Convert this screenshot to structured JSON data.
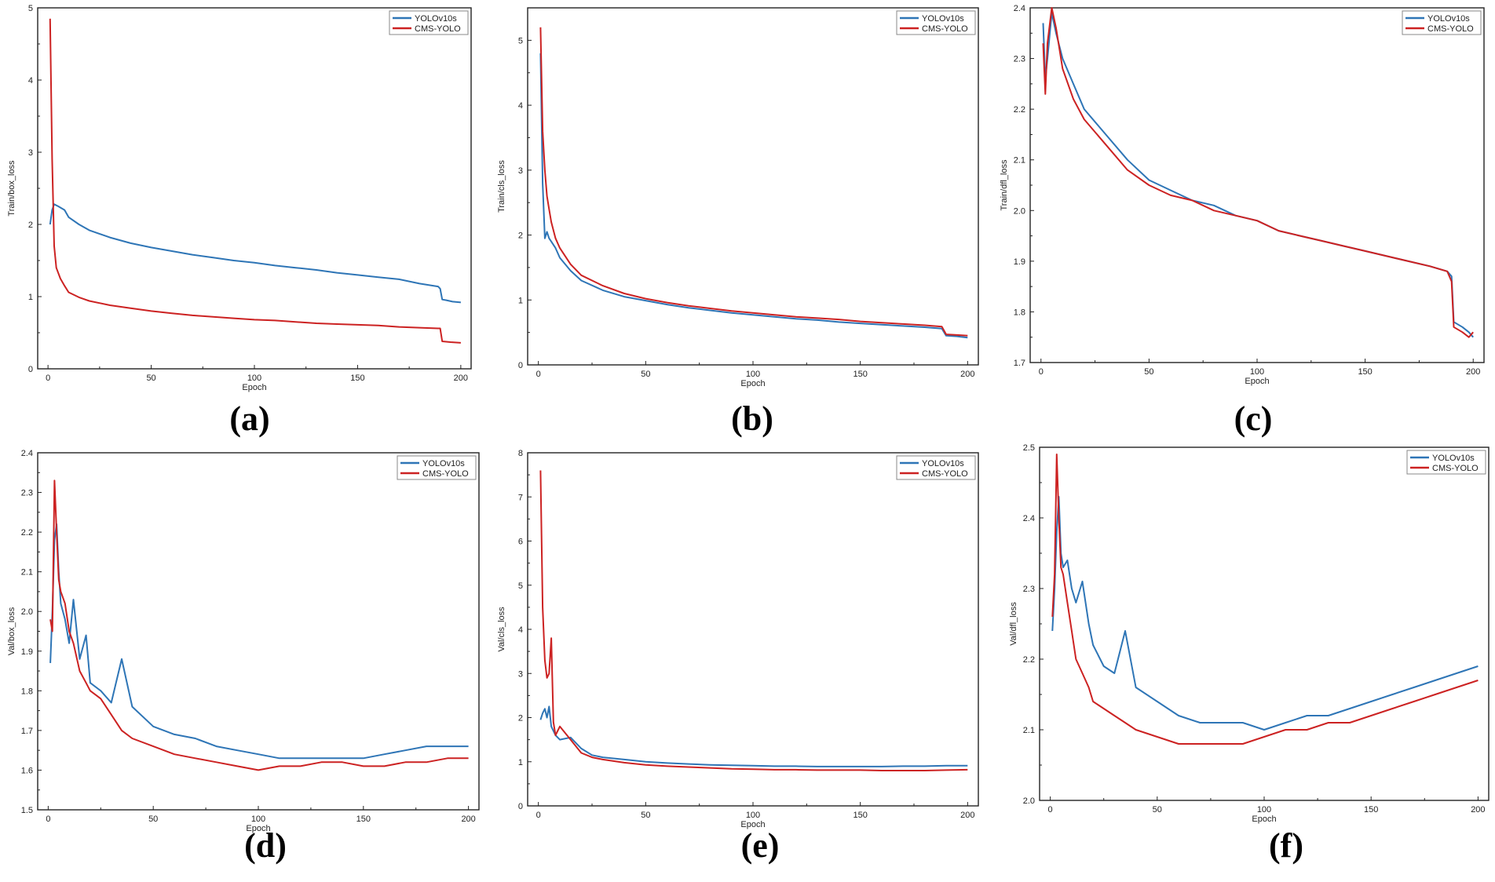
{
  "colors": {
    "yolov10s": "#2e75b6",
    "cms_yolo": "#cc2222",
    "axis": "#222222"
  },
  "captions": [
    "(a)",
    "(b)",
    "(c)",
    "(d)",
    "(e)",
    "(f)"
  ],
  "chart_data": [
    {
      "type": "line",
      "title": "",
      "xlabel": "Epoch",
      "ylabel": "Train/box_loss",
      "xlim": [
        -5,
        205
      ],
      "ylim": [
        0,
        5
      ],
      "xticks": [
        0,
        50,
        100,
        150,
        200
      ],
      "yticks": [
        0,
        1,
        2,
        3,
        4,
        5
      ],
      "legend": "top-right",
      "series": [
        {
          "name": "YOLOv10s",
          "color": "#2e75b6",
          "x": [
            1,
            2,
            3,
            5,
            8,
            10,
            15,
            20,
            30,
            40,
            50,
            60,
            70,
            80,
            90,
            100,
            110,
            120,
            130,
            140,
            150,
            160,
            170,
            180,
            189,
            190,
            191,
            193,
            196,
            200
          ],
          "y": [
            2.0,
            2.2,
            2.28,
            2.25,
            2.2,
            2.1,
            2.0,
            1.92,
            1.82,
            1.74,
            1.68,
            1.63,
            1.58,
            1.54,
            1.5,
            1.47,
            1.43,
            1.4,
            1.37,
            1.33,
            1.3,
            1.27,
            1.24,
            1.18,
            1.14,
            1.11,
            0.96,
            0.95,
            0.93,
            0.92
          ]
        },
        {
          "name": "CMS-YOLO",
          "color": "#cc2222",
          "x": [
            1,
            2,
            3,
            4,
            6,
            8,
            10,
            15,
            20,
            30,
            40,
            50,
            60,
            70,
            80,
            90,
            100,
            110,
            120,
            130,
            140,
            150,
            160,
            170,
            180,
            189,
            190,
            191,
            195,
            200
          ],
          "y": [
            4.85,
            2.9,
            1.7,
            1.4,
            1.25,
            1.15,
            1.06,
            0.99,
            0.94,
            0.88,
            0.84,
            0.8,
            0.77,
            0.74,
            0.72,
            0.7,
            0.68,
            0.67,
            0.65,
            0.63,
            0.62,
            0.61,
            0.6,
            0.58,
            0.57,
            0.56,
            0.56,
            0.38,
            0.37,
            0.36
          ]
        }
      ]
    },
    {
      "type": "line",
      "title": "",
      "xlabel": "Epoch",
      "ylabel": "Train/cls_loss",
      "xlim": [
        -5,
        205
      ],
      "ylim": [
        0,
        5.5
      ],
      "xticks": [
        0,
        50,
        100,
        150,
        200
      ],
      "yticks": [
        0,
        1,
        2,
        3,
        4,
        5
      ],
      "legend": "top-right",
      "series": [
        {
          "name": "YOLOv10s",
          "color": "#2e75b6",
          "x": [
            1,
            2,
            3,
            4,
            5,
            6,
            8,
            10,
            15,
            20,
            30,
            40,
            50,
            60,
            70,
            80,
            90,
            100,
            110,
            120,
            130,
            140,
            150,
            160,
            170,
            180,
            188,
            190,
            195,
            200
          ],
          "y": [
            4.8,
            2.8,
            1.95,
            2.05,
            1.95,
            1.9,
            1.8,
            1.65,
            1.45,
            1.3,
            1.15,
            1.05,
            0.99,
            0.93,
            0.88,
            0.84,
            0.8,
            0.77,
            0.74,
            0.71,
            0.69,
            0.66,
            0.64,
            0.62,
            0.6,
            0.58,
            0.56,
            0.45,
            0.44,
            0.42
          ]
        },
        {
          "name": "CMS-YOLO",
          "color": "#cc2222",
          "x": [
            1,
            2,
            3,
            4,
            5,
            6,
            8,
            10,
            15,
            20,
            30,
            40,
            50,
            60,
            70,
            80,
            90,
            100,
            110,
            120,
            130,
            140,
            150,
            160,
            170,
            180,
            188,
            190,
            195,
            200
          ],
          "y": [
            5.2,
            3.6,
            3.0,
            2.6,
            2.4,
            2.2,
            1.95,
            1.8,
            1.55,
            1.38,
            1.22,
            1.1,
            1.02,
            0.96,
            0.91,
            0.87,
            0.83,
            0.8,
            0.77,
            0.74,
            0.72,
            0.7,
            0.67,
            0.65,
            0.63,
            0.61,
            0.59,
            0.47,
            0.46,
            0.45
          ]
        }
      ]
    },
    {
      "type": "line",
      "title": "",
      "xlabel": "Epoch",
      "ylabel": "Train/dfl_loss",
      "xlim": [
        -5,
        205
      ],
      "ylim": [
        1.7,
        2.4
      ],
      "xticks": [
        0,
        50,
        100,
        150,
        200
      ],
      "yticks": [
        1.7,
        1.8,
        1.9,
        2.0,
        2.1,
        2.2,
        2.3,
        2.4
      ],
      "legend": "top-right",
      "series": [
        {
          "name": "YOLOv10s",
          "color": "#2e75b6",
          "x": [
            1,
            2,
            3,
            5,
            7,
            10,
            15,
            20,
            30,
            40,
            50,
            60,
            70,
            80,
            90,
            100,
            110,
            120,
            130,
            140,
            150,
            160,
            170,
            180,
            188,
            190,
            191,
            195,
            198,
            200
          ],
          "y": [
            2.37,
            2.26,
            2.3,
            2.39,
            2.35,
            2.3,
            2.25,
            2.2,
            2.15,
            2.1,
            2.06,
            2.04,
            2.02,
            2.01,
            1.99,
            1.98,
            1.96,
            1.95,
            1.94,
            1.93,
            1.92,
            1.91,
            1.9,
            1.89,
            1.88,
            1.87,
            1.78,
            1.77,
            1.76,
            1.75
          ]
        },
        {
          "name": "CMS-YOLO",
          "color": "#cc2222",
          "x": [
            1,
            2,
            3,
            5,
            7,
            10,
            15,
            20,
            30,
            40,
            50,
            60,
            70,
            80,
            90,
            100,
            110,
            120,
            130,
            140,
            150,
            160,
            170,
            180,
            188,
            190,
            191,
            195,
            198,
            200
          ],
          "y": [
            2.33,
            2.23,
            2.33,
            2.4,
            2.36,
            2.28,
            2.22,
            2.18,
            2.13,
            2.08,
            2.05,
            2.03,
            2.02,
            2.0,
            1.99,
            1.98,
            1.96,
            1.95,
            1.94,
            1.93,
            1.92,
            1.91,
            1.9,
            1.89,
            1.88,
            1.86,
            1.77,
            1.76,
            1.75,
            1.76
          ]
        }
      ]
    },
    {
      "type": "line",
      "title": "",
      "xlabel": "Epoch",
      "ylabel": "Val/box_loss",
      "xlim": [
        -5,
        205
      ],
      "ylim": [
        1.5,
        2.4
      ],
      "xticks": [
        0,
        50,
        100,
        150,
        200
      ],
      "yticks": [
        1.5,
        1.6,
        1.7,
        1.8,
        1.9,
        2.0,
        2.1,
        2.2,
        2.3,
        2.4
      ],
      "legend": "top-right",
      "series": [
        {
          "name": "YOLOv10s",
          "color": "#2e75b6",
          "x": [
            1,
            2,
            3,
            4,
            5,
            6,
            8,
            10,
            12,
            15,
            18,
            20,
            25,
            30,
            35,
            40,
            50,
            60,
            70,
            80,
            90,
            100,
            110,
            120,
            130,
            140,
            150,
            160,
            170,
            180,
            190,
            200
          ],
          "y": [
            1.87,
            2.0,
            2.18,
            2.22,
            2.1,
            2.02,
            1.98,
            1.92,
            2.03,
            1.88,
            1.94,
            1.82,
            1.8,
            1.77,
            1.88,
            1.76,
            1.71,
            1.69,
            1.68,
            1.66,
            1.65,
            1.64,
            1.63,
            1.63,
            1.63,
            1.63,
            1.63,
            1.64,
            1.65,
            1.66,
            1.66,
            1.66
          ]
        },
        {
          "name": "CMS-YOLO",
          "color": "#cc2222",
          "x": [
            1,
            2,
            3,
            4,
            5,
            6,
            8,
            10,
            12,
            15,
            18,
            20,
            25,
            30,
            35,
            40,
            50,
            60,
            70,
            80,
            90,
            100,
            110,
            120,
            130,
            140,
            150,
            160,
            170,
            180,
            190,
            200
          ],
          "y": [
            1.98,
            1.95,
            2.33,
            2.2,
            2.08,
            2.05,
            2.02,
            1.95,
            1.92,
            1.85,
            1.82,
            1.8,
            1.78,
            1.74,
            1.7,
            1.68,
            1.66,
            1.64,
            1.63,
            1.62,
            1.61,
            1.6,
            1.61,
            1.61,
            1.62,
            1.62,
            1.61,
            1.61,
            1.62,
            1.62,
            1.63,
            1.63
          ]
        }
      ]
    },
    {
      "type": "line",
      "title": "",
      "xlabel": "Epoch",
      "ylabel": "Val/cls_loss",
      "xlim": [
        -5,
        205
      ],
      "ylim": [
        0,
        8
      ],
      "xticks": [
        0,
        50,
        100,
        150,
        200
      ],
      "yticks": [
        0,
        1,
        2,
        3,
        4,
        5,
        6,
        7,
        8
      ],
      "legend": "top-right",
      "series": [
        {
          "name": "YOLOv10s",
          "color": "#2e75b6",
          "x": [
            1,
            2,
            3,
            4,
            5,
            6,
            8,
            10,
            15,
            20,
            25,
            30,
            40,
            50,
            60,
            70,
            80,
            90,
            100,
            110,
            120,
            130,
            140,
            150,
            160,
            170,
            180,
            190,
            200
          ],
          "y": [
            1.95,
            2.1,
            2.2,
            2.0,
            2.25,
            1.8,
            1.6,
            1.5,
            1.55,
            1.3,
            1.15,
            1.1,
            1.05,
            1.0,
            0.97,
            0.95,
            0.93,
            0.92,
            0.91,
            0.9,
            0.9,
            0.89,
            0.89,
            0.89,
            0.89,
            0.9,
            0.9,
            0.91,
            0.91
          ]
        },
        {
          "name": "CMS-YOLO",
          "color": "#cc2222",
          "x": [
            1,
            2,
            3,
            4,
            5,
            6,
            7,
            8,
            10,
            15,
            20,
            25,
            30,
            40,
            50,
            60,
            70,
            80,
            90,
            100,
            110,
            120,
            130,
            140,
            150,
            160,
            170,
            180,
            190,
            200
          ],
          "y": [
            7.6,
            4.5,
            3.3,
            2.9,
            3.0,
            3.8,
            1.9,
            1.6,
            1.8,
            1.5,
            1.2,
            1.1,
            1.05,
            0.98,
            0.93,
            0.9,
            0.88,
            0.86,
            0.84,
            0.83,
            0.82,
            0.82,
            0.81,
            0.81,
            0.81,
            0.8,
            0.8,
            0.8,
            0.81,
            0.82
          ]
        }
      ]
    },
    {
      "type": "line",
      "title": "",
      "xlabel": "Epoch",
      "ylabel": "Val/dfl_loss",
      "xlim": [
        -5,
        205
      ],
      "ylim": [
        2.0,
        2.5
      ],
      "xticks": [
        0,
        50,
        100,
        150,
        200
      ],
      "yticks": [
        2.0,
        2.1,
        2.2,
        2.3,
        2.4,
        2.5
      ],
      "legend": "top-right",
      "series": [
        {
          "name": "YOLOv10s",
          "color": "#2e75b6",
          "x": [
            1,
            2,
            3,
            4,
            5,
            6,
            8,
            10,
            12,
            15,
            18,
            20,
            25,
            30,
            35,
            40,
            50,
            60,
            70,
            80,
            90,
            100,
            110,
            120,
            130,
            140,
            150,
            160,
            170,
            180,
            190,
            200
          ],
          "y": [
            2.24,
            2.3,
            2.38,
            2.43,
            2.35,
            2.33,
            2.34,
            2.3,
            2.28,
            2.31,
            2.25,
            2.22,
            2.19,
            2.18,
            2.24,
            2.16,
            2.14,
            2.12,
            2.11,
            2.11,
            2.11,
            2.1,
            2.11,
            2.12,
            2.12,
            2.13,
            2.14,
            2.15,
            2.16,
            2.17,
            2.18,
            2.19
          ]
        },
        {
          "name": "CMS-YOLO",
          "color": "#cc2222",
          "x": [
            1,
            2,
            3,
            4,
            5,
            6,
            8,
            10,
            12,
            15,
            18,
            20,
            25,
            30,
            35,
            40,
            50,
            60,
            70,
            80,
            90,
            100,
            110,
            120,
            130,
            140,
            150,
            160,
            170,
            180,
            190,
            200
          ],
          "y": [
            2.26,
            2.32,
            2.49,
            2.4,
            2.33,
            2.32,
            2.28,
            2.24,
            2.2,
            2.18,
            2.16,
            2.14,
            2.13,
            2.12,
            2.11,
            2.1,
            2.09,
            2.08,
            2.08,
            2.08,
            2.08,
            2.09,
            2.1,
            2.1,
            2.11,
            2.11,
            2.12,
            2.13,
            2.14,
            2.15,
            2.16,
            2.17
          ]
        }
      ]
    }
  ]
}
